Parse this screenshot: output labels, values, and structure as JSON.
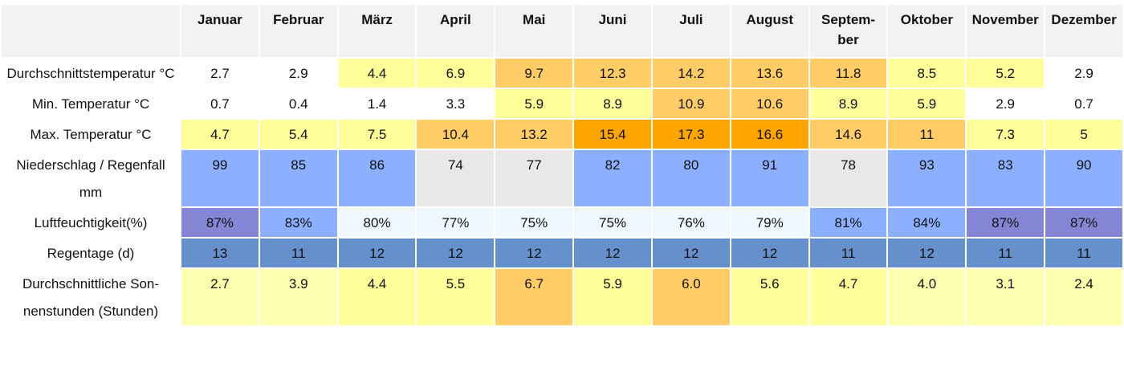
{
  "table": {
    "header": [
      "Januar",
      "Februar",
      "März",
      "April",
      "Mai",
      "Juni",
      "Juli",
      "August",
      "Septem­ber",
      "Oktober",
      "Novem­ber",
      "Dezember"
    ],
    "rows": [
      {
        "label": "Durchschnittstemperatur °C",
        "cells": [
          "2.7",
          "2.9",
          "4.4",
          "6.9",
          "9.7",
          "12.3",
          "14.2",
          "13.6",
          "11.8",
          "8.5",
          "5.2",
          "2.9"
        ],
        "colors": [
          "#ffffff",
          "#ffffff",
          "#ffff99",
          "#ffff99",
          "#ffcc66",
          "#ffcc66",
          "#ffcc66",
          "#ffcc66",
          "#ffcc66",
          "#ffff99",
          "#ffff99",
          "#ffffff"
        ]
      },
      {
        "label": "Min. Temperatur °C",
        "cells": [
          "0.7",
          "0.4",
          "1.4",
          "3.3",
          "5.9",
          "8.9",
          "10.9",
          "10.6",
          "8.9",
          "5.9",
          "2.9",
          "0.7"
        ],
        "colors": [
          "#ffffff",
          "#ffffff",
          "#ffffff",
          "#ffffff",
          "#ffff99",
          "#ffff99",
          "#ffcc66",
          "#ffcc66",
          "#ffff99",
          "#ffff99",
          "#ffffff",
          "#ffffff"
        ]
      },
      {
        "label": "Max. Temperatur °C",
        "cells": [
          "4.7",
          "5.4",
          "7.5",
          "10.4",
          "13.2",
          "15.4",
          "17.3",
          "16.6",
          "14.6",
          "11",
          "7.3",
          "5"
        ],
        "colors": [
          "#ffff99",
          "#ffff99",
          "#ffff99",
          "#ffcc66",
          "#ffcc66",
          "#ffa500",
          "#ffa500",
          "#ffa500",
          "#ffcc66",
          "#ffcc66",
          "#ffff99",
          "#ffff99"
        ]
      },
      {
        "label": "Niederschlag / Regenfall mm",
        "cells": [
          "99",
          "85",
          "86",
          "74",
          "77",
          "82",
          "80",
          "91",
          "78",
          "93",
          "83",
          "90"
        ],
        "colors": [
          "#8cb0ff",
          "#8cb0ff",
          "#8cb0ff",
          "#e8e8e8",
          "#e8e8e8",
          "#8cb0ff",
          "#8cb0ff",
          "#8cb0ff",
          "#e8e8e8",
          "#8cb0ff",
          "#8cb0ff",
          "#8cb0ff"
        ]
      },
      {
        "label": "Luftfeuchtigkeit(%)",
        "cells": [
          "87%",
          "83%",
          "80%",
          "77%",
          "75%",
          "75%",
          "76%",
          "79%",
          "81%",
          "84%",
          "87%",
          "87%"
        ],
        "colors": [
          "#8585d6",
          "#8cb0ff",
          "#f0f8ff",
          "#f0f8ff",
          "#f0f8ff",
          "#f0f8ff",
          "#f0f8ff",
          "#f0f8ff",
          "#8cb0ff",
          "#8cb0ff",
          "#8585d6",
          "#8585d6"
        ]
      },
      {
        "label": "Regentage (d)",
        "cells": [
          "13",
          "11",
          "12",
          "12",
          "12",
          "12",
          "12",
          "12",
          "11",
          "12",
          "11",
          "11"
        ],
        "colors": [
          "#6690cc",
          "#6690cc",
          "#6690cc",
          "#6690cc",
          "#6690cc",
          "#6690cc",
          "#6690cc",
          "#6690cc",
          "#6690cc",
          "#6690cc",
          "#6690cc",
          "#6690cc"
        ]
      },
      {
        "label": "Durchschnittliche Son­nenstunden (Stunden)",
        "cells": [
          "2.7",
          "3.9",
          "4.4",
          "5.5",
          "6.7",
          "5.9",
          "6.0",
          "5.6",
          "4.7",
          "4.0",
          "3.1",
          "2.4"
        ],
        "colors": [
          "#ffffb0",
          "#ffffb0",
          "#ffff99",
          "#ffff99",
          "#ffcc66",
          "#ffff99",
          "#ffcc66",
          "#ffff99",
          "#ffff99",
          "#ffffb0",
          "#ffffb0",
          "#ffffb0"
        ]
      }
    ]
  }
}
